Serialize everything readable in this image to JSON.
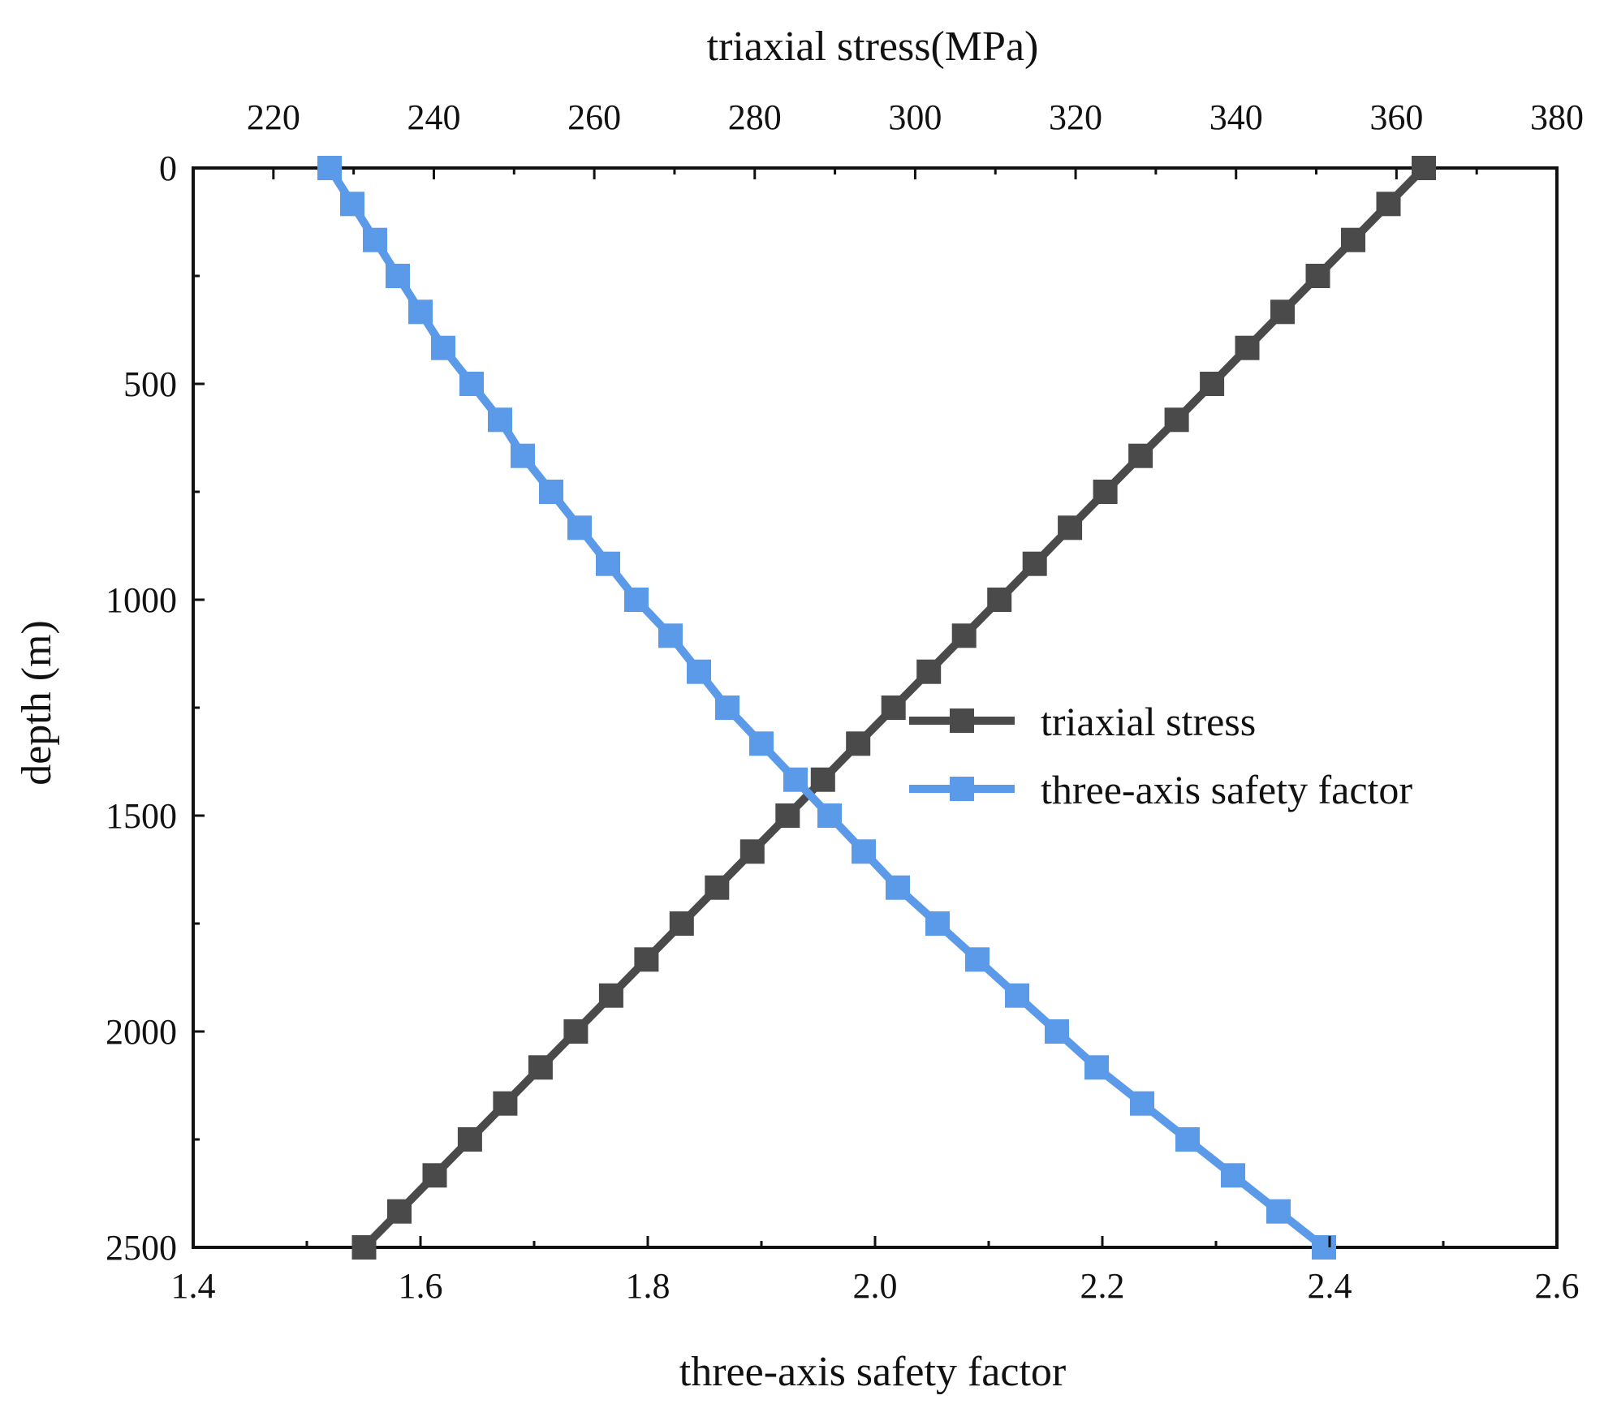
{
  "chart_data": {
    "type": "line",
    "title": "",
    "top_xlabel": "triaxial stress(MPa)",
    "bottom_xlabel": "three-axis safety factor",
    "ylabel": "depth (m)",
    "top_xlim": [
      210,
      380
    ],
    "bottom_xlim": [
      1.4,
      2.6
    ],
    "ylim": [
      0,
      2500
    ],
    "y_inverted": true,
    "top_xticks": [
      "220",
      "240",
      "260",
      "280",
      "300",
      "320",
      "340",
      "360",
      "380"
    ],
    "bottom_xticks": [
      "1.4",
      "1.6",
      "1.8",
      "2.0",
      "2.2",
      "2.4",
      "2.6"
    ],
    "yticks": [
      "0",
      "500",
      "1000",
      "1500",
      "2000",
      "2500"
    ],
    "grid": false,
    "legend_position": "center-right",
    "depth": [
      0,
      83.3,
      166.7,
      250,
      333.3,
      416.7,
      500,
      583.3,
      666.7,
      750,
      833.3,
      916.7,
      1000,
      1083.3,
      1166.7,
      1250,
      1333.3,
      1416.7,
      1500,
      1583.3,
      1666.7,
      1750,
      1833.3,
      1916.7,
      2000,
      2083.3,
      2166.7,
      2250,
      2333.3,
      2416.7,
      2500
    ],
    "series": [
      {
        "name": "triaxial stress",
        "axis": "top",
        "color": "#4a4a4a",
        "marker": "square",
        "values": [
          363.4,
          359.0,
          354.6,
          350.2,
          345.8,
          341.4,
          337.0,
          332.6,
          328.1,
          323.7,
          319.3,
          314.9,
          310.5,
          306.1,
          301.7,
          297.3,
          292.9,
          288.5,
          284.1,
          279.7,
          275.3,
          270.9,
          266.5,
          262.1,
          257.7,
          253.3,
          248.9,
          244.5,
          240.1,
          235.7,
          231.3
        ]
      },
      {
        "name": "three-axis safety factor",
        "axis": "bottom",
        "color": "#5b9ae8",
        "marker": "square",
        "values": [
          1.52,
          1.54,
          1.56,
          1.58,
          1.6,
          1.62,
          1.645,
          1.67,
          1.69,
          1.715,
          1.74,
          1.765,
          1.79,
          1.82,
          1.845,
          1.87,
          1.9,
          1.93,
          1.96,
          1.99,
          2.02,
          2.055,
          2.09,
          2.125,
          2.16,
          2.195,
          2.235,
          2.275,
          2.315,
          2.355,
          2.395
        ]
      }
    ]
  }
}
